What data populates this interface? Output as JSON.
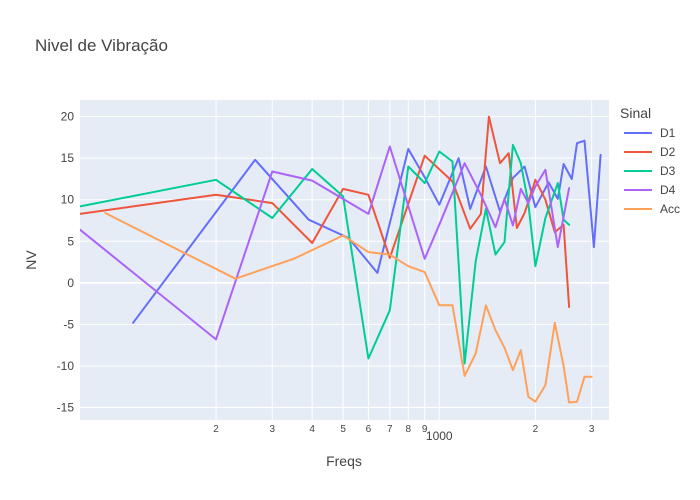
{
  "chart_data": {
    "type": "line",
    "title": "Nivel de Vibração",
    "xlabel": "Freqs",
    "ylabel": "NV",
    "x_scale": "log",
    "xlim": [
      75,
      3400
    ],
    "ylim": [
      -16.5,
      22
    ],
    "y_ticks": [
      -15,
      -10,
      -5,
      0,
      5,
      10,
      15,
      20
    ],
    "x_ticks": [
      {
        "value": 200,
        "label": "2"
      },
      {
        "value": 300,
        "label": "3"
      },
      {
        "value": 400,
        "label": "4"
      },
      {
        "value": 500,
        "label": "5"
      },
      {
        "value": 600,
        "label": "6"
      },
      {
        "value": 700,
        "label": "7"
      },
      {
        "value": 800,
        "label": "8"
      },
      {
        "value": 900,
        "label": "9"
      },
      {
        "value": 1000,
        "label": "1000"
      },
      {
        "value": 2000,
        "label": "2"
      },
      {
        "value": 3000,
        "label": "3"
      }
    ],
    "legend_title": "Sinal",
    "legend_position": "right",
    "grid": true,
    "plot_bgcolor": "#E5ECF6",
    "series": [
      {
        "name": "D1",
        "color": "#636EFA",
        "x": [
          110,
          265,
          390,
          520,
          640,
          800,
          900,
          1000,
          1150,
          1250,
          1400,
          1550,
          1700,
          1850,
          2000,
          2200,
          2350,
          2450,
          2600,
          2700,
          2850,
          3050,
          3200
        ],
        "y": [
          -4.8,
          14.8,
          7.6,
          5.4,
          1.2,
          16.1,
          12.7,
          9.4,
          15.0,
          8.9,
          14.0,
          8.6,
          12.6,
          14.0,
          9.1,
          12.1,
          10.1,
          14.3,
          12.5,
          16.8,
          17.1,
          4.3,
          15.4
        ]
      },
      {
        "name": "D2",
        "color": "#EF553B",
        "x": [
          75,
          200,
          300,
          400,
          500,
          600,
          700,
          900,
          1100,
          1250,
          1350,
          1430,
          1550,
          1650,
          1750,
          1850,
          2000,
          2150,
          2300,
          2450,
          2550
        ],
        "y": [
          8.3,
          10.6,
          9.6,
          4.8,
          11.3,
          10.6,
          3.0,
          15.3,
          12.2,
          6.5,
          8.3,
          20.0,
          14.4,
          15.6,
          6.6,
          8.4,
          12.4,
          10.0,
          6.1,
          7.0,
          -2.9
        ],
        "note": "x-extent truncated near 2550"
      },
      {
        "name": "D3",
        "color": "#00CC96",
        "x": [
          75,
          200,
          300,
          400,
          500,
          600,
          700,
          800,
          900,
          1000,
          1100,
          1200,
          1300,
          1400,
          1500,
          1600,
          1700,
          1800,
          1900,
          2000,
          2150,
          2350,
          2450,
          2550
        ],
        "y": [
          9.2,
          12.4,
          7.8,
          13.7,
          10.4,
          -9.1,
          -3.3,
          14.0,
          12.0,
          15.8,
          14.6,
          -9.7,
          2.6,
          8.9,
          3.4,
          4.9,
          16.6,
          14.4,
          9.6,
          2.0,
          7.8,
          12.0,
          7.6,
          7.0
        ]
      },
      {
        "name": "D4",
        "color": "#AB63FA",
        "x": [
          75,
          200,
          300,
          400,
          600,
          700,
          900,
          1000,
          1200,
          1350,
          1500,
          1600,
          1700,
          1800,
          1900,
          2000,
          2150,
          2350,
          2550
        ],
        "y": [
          6.4,
          -6.8,
          13.4,
          12.3,
          8.3,
          16.4,
          2.9,
          7.0,
          14.4,
          10.6,
          6.7,
          10.1,
          6.9,
          11.3,
          9.6,
          11.6,
          13.6,
          4.3,
          11.4
        ]
      },
      {
        "name": "Acc",
        "color": "#FFA15A",
        "x": [
          90,
          230,
          350,
          500,
          600,
          700,
          800,
          900,
          1000,
          1100,
          1200,
          1300,
          1400,
          1500,
          1600,
          1700,
          1800,
          1900,
          2000,
          2150,
          2300,
          2450,
          2550,
          2700,
          2850,
          3000
        ],
        "y": [
          8.4,
          0.5,
          2.9,
          5.7,
          3.7,
          3.4,
          2.0,
          1.3,
          -2.7,
          -2.7,
          -11.2,
          -8.5,
          -2.7,
          -5.7,
          -7.8,
          -10.5,
          -8.1,
          -13.7,
          -14.3,
          -12.3,
          -4.8,
          -10.0,
          -14.4,
          -14.3,
          -11.3,
          -11.3
        ]
      }
    ]
  }
}
